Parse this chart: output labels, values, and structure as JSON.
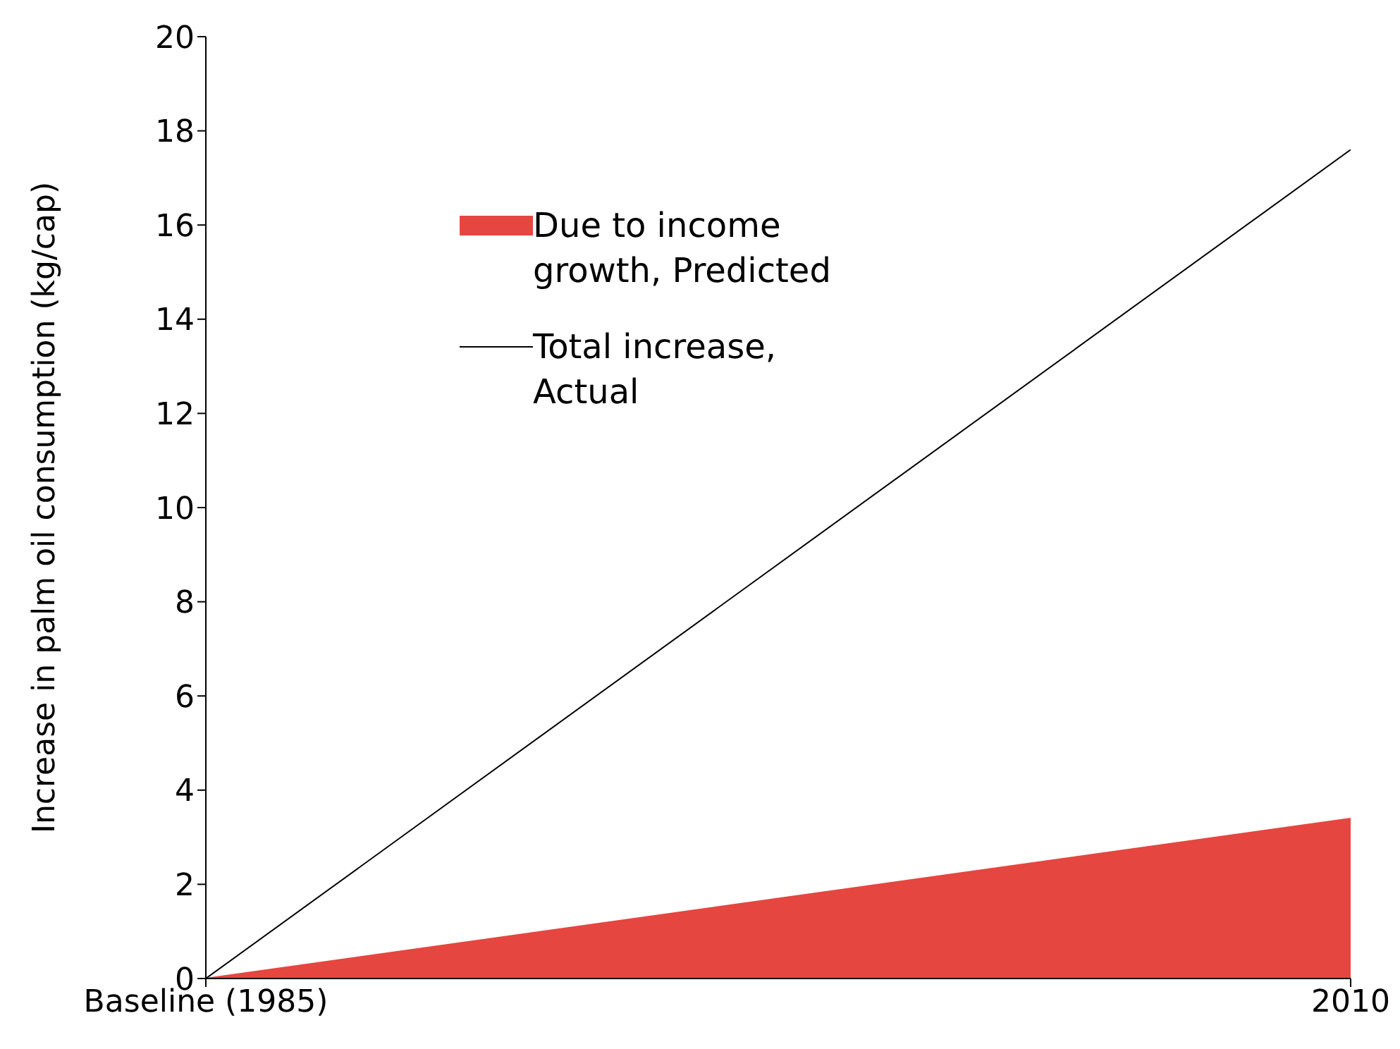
{
  "chart_data": {
    "type": "area",
    "ylabel": "Increase in palm oil consumption (kg/cap)",
    "x": [
      1985,
      2010
    ],
    "series": [
      {
        "name": "Due to income growth, Predicted",
        "color": "#e64640",
        "values": [
          0,
          3.4
        ]
      },
      {
        "name": "Total increase, Actual",
        "type": "line",
        "color": "#000000",
        "values": [
          0,
          17.6
        ]
      }
    ],
    "xlim": [
      1985,
      2010
    ],
    "xticks": [
      {
        "value": 1985,
        "label": "Baseline (1985)"
      },
      2010
    ],
    "ylim": [
      0,
      20
    ],
    "yticks": [
      0,
      2,
      4,
      6,
      8,
      10,
      12,
      14,
      16,
      18,
      20
    ],
    "grid": false,
    "legend": "top",
    "marker": "none"
  }
}
